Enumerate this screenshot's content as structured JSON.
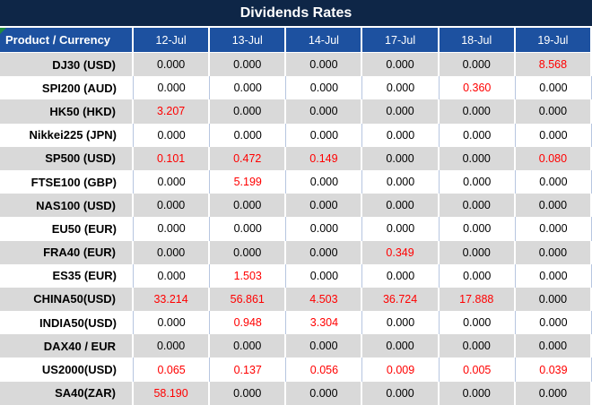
{
  "title": "Dividends Rates",
  "columns": [
    "Product / Currency",
    "12-Jul",
    "13-Jul",
    "14-Jul",
    "17-Jul",
    "18-Jul",
    "19-Jul"
  ],
  "rows": [
    {
      "product": "DJ30 (USD)",
      "values": [
        "0.000",
        "0.000",
        "0.000",
        "0.000",
        "0.000",
        "8.568"
      ],
      "red": [
        false,
        false,
        false,
        false,
        false,
        true
      ]
    },
    {
      "product": "SPI200 (AUD)",
      "values": [
        "0.000",
        "0.000",
        "0.000",
        "0.000",
        "0.360",
        "0.000"
      ],
      "red": [
        false,
        false,
        false,
        false,
        true,
        false
      ]
    },
    {
      "product": "HK50 (HKD)",
      "values": [
        "3.207",
        "0.000",
        "0.000",
        "0.000",
        "0.000",
        "0.000"
      ],
      "red": [
        true,
        false,
        false,
        false,
        false,
        false
      ]
    },
    {
      "product": "Nikkei225 (JPN)",
      "values": [
        "0.000",
        "0.000",
        "0.000",
        "0.000",
        "0.000",
        "0.000"
      ],
      "red": [
        false,
        false,
        false,
        false,
        false,
        false
      ]
    },
    {
      "product": "SP500 (USD)",
      "values": [
        "0.101",
        "0.472",
        "0.149",
        "0.000",
        "0.000",
        "0.080"
      ],
      "red": [
        true,
        true,
        true,
        false,
        false,
        true
      ]
    },
    {
      "product": "FTSE100 (GBP)",
      "values": [
        "0.000",
        "5.199",
        "0.000",
        "0.000",
        "0.000",
        "0.000"
      ],
      "red": [
        false,
        true,
        false,
        false,
        false,
        false
      ]
    },
    {
      "product": "NAS100 (USD)",
      "values": [
        "0.000",
        "0.000",
        "0.000",
        "0.000",
        "0.000",
        "0.000"
      ],
      "red": [
        false,
        false,
        false,
        false,
        false,
        false
      ]
    },
    {
      "product": "EU50 (EUR)",
      "values": [
        "0.000",
        "0.000",
        "0.000",
        "0.000",
        "0.000",
        "0.000"
      ],
      "red": [
        false,
        false,
        false,
        false,
        false,
        false
      ]
    },
    {
      "product": "FRA40 (EUR)",
      "values": [
        "0.000",
        "0.000",
        "0.000",
        "0.349",
        "0.000",
        "0.000"
      ],
      "red": [
        false,
        false,
        false,
        true,
        false,
        false
      ]
    },
    {
      "product": "ES35 (EUR)",
      "values": [
        "0.000",
        "1.503",
        "0.000",
        "0.000",
        "0.000",
        "0.000"
      ],
      "red": [
        false,
        true,
        false,
        false,
        false,
        false
      ]
    },
    {
      "product": "CHINA50(USD)",
      "values": [
        "33.214",
        "56.861",
        "4.503",
        "36.724",
        "17.888",
        "0.000"
      ],
      "red": [
        true,
        true,
        true,
        true,
        true,
        false
      ]
    },
    {
      "product": "INDIA50(USD)",
      "values": [
        "0.000",
        "0.948",
        "3.304",
        "0.000",
        "0.000",
        "0.000"
      ],
      "red": [
        false,
        true,
        true,
        false,
        false,
        false
      ]
    },
    {
      "product": "DAX40 / EUR",
      "values": [
        "0.000",
        "0.000",
        "0.000",
        "0.000",
        "0.000",
        "0.000"
      ],
      "red": [
        false,
        false,
        false,
        false,
        false,
        false
      ]
    },
    {
      "product": "US2000(USD)",
      "values": [
        "0.065",
        "0.137",
        "0.056",
        "0.009",
        "0.005",
        "0.039"
      ],
      "red": [
        true,
        true,
        true,
        true,
        true,
        true
      ]
    },
    {
      "product": "SA40(ZAR)",
      "values": [
        "58.190",
        "0.000",
        "0.000",
        "0.000",
        "0.000",
        "0.000"
      ],
      "red": [
        true,
        false,
        false,
        false,
        false,
        false
      ]
    }
  ],
  "icons": {
    "corner_marker": "green-corner-triangle"
  },
  "colors": {
    "title_bg": "#0e2647",
    "header_bg": "#1d51a0",
    "header_text": "#ffffff",
    "alt_row_bg": "#d9d9d9",
    "row_bg": "#ffffff",
    "grid_line": "#b7c6e0",
    "value_red": "#ff0000",
    "value_black": "#000000",
    "marker_green": "#1f8b3e"
  }
}
